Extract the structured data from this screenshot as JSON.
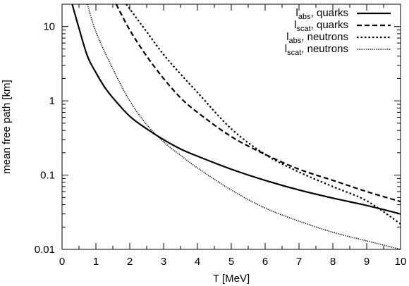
{
  "chart_data": {
    "type": "line",
    "title": "",
    "xlabel": "T [MeV]",
    "ylabel": "mean free path [km]",
    "xlim": [
      0,
      10
    ],
    "ylim": [
      0.01,
      20
    ],
    "yscale": "log",
    "grid": false,
    "legend_position": "top-right",
    "xticks": [
      0,
      1,
      2,
      3,
      4,
      5,
      6,
      7,
      8,
      9,
      10
    ],
    "xtick_labels": [
      "0",
      "1",
      "2",
      "3",
      "4",
      "5",
      "6",
      "7",
      "8",
      "9",
      "10"
    ],
    "yticks": [
      0.01,
      0.1,
      1,
      10
    ],
    "ytick_labels": [
      "0.01",
      "0.1",
      "1",
      "10"
    ],
    "series": [
      {
        "label_main": "l",
        "label_sub": "abs",
        "label_rest": ", quarks",
        "style": "solid",
        "x": [
          0.3,
          0.5,
          0.75,
          1.0,
          1.25,
          1.5,
          2.0,
          2.5,
          3.0,
          3.5,
          4.0,
          5.0,
          6.0,
          7.0,
          8.0,
          9.0,
          10.0
        ],
        "y": [
          20,
          9.5,
          4.0,
          2.4,
          1.55,
          1.1,
          0.62,
          0.42,
          0.3,
          0.225,
          0.18,
          0.12,
          0.085,
          0.063,
          0.049,
          0.039,
          0.03
        ]
      },
      {
        "label_main": "l",
        "label_sub": "scat",
        "label_rest": ", quarks",
        "style": "dashed",
        "x": [
          1.6,
          2.0,
          2.5,
          3.0,
          3.5,
          4.0,
          5.0,
          6.0,
          7.0,
          8.0,
          9.0,
          10.0
        ],
        "y": [
          20,
          9.0,
          4.0,
          2.0,
          1.1,
          0.7,
          0.33,
          0.19,
          0.12,
          0.085,
          0.06,
          0.044
        ]
      },
      {
        "label_main": "l",
        "label_sub": "abs",
        "label_rest": ", neutrons",
        "style": "dotted",
        "x": [
          1.9,
          2.5,
          3.0,
          3.5,
          4.0,
          5.0,
          6.0,
          7.0,
          8.0,
          9.0,
          10.0
        ],
        "y": [
          20,
          8.5,
          4.2,
          2.3,
          1.3,
          0.42,
          0.19,
          0.11,
          0.07,
          0.045,
          0.022
        ]
      },
      {
        "label_main": "l",
        "label_sub": "scat",
        "label_rest": ", neutrons",
        "style": "fine-dotted",
        "x": [
          0.75,
          1.0,
          1.5,
          2.0,
          2.5,
          3.0,
          3.5,
          4.0,
          5.0,
          6.0,
          7.0,
          8.0,
          9.0,
          10.0
        ],
        "y": [
          20,
          8.5,
          2.7,
          1.0,
          0.48,
          0.28,
          0.185,
          0.125,
          0.063,
          0.036,
          0.024,
          0.017,
          0.013,
          0.01
        ]
      }
    ]
  }
}
